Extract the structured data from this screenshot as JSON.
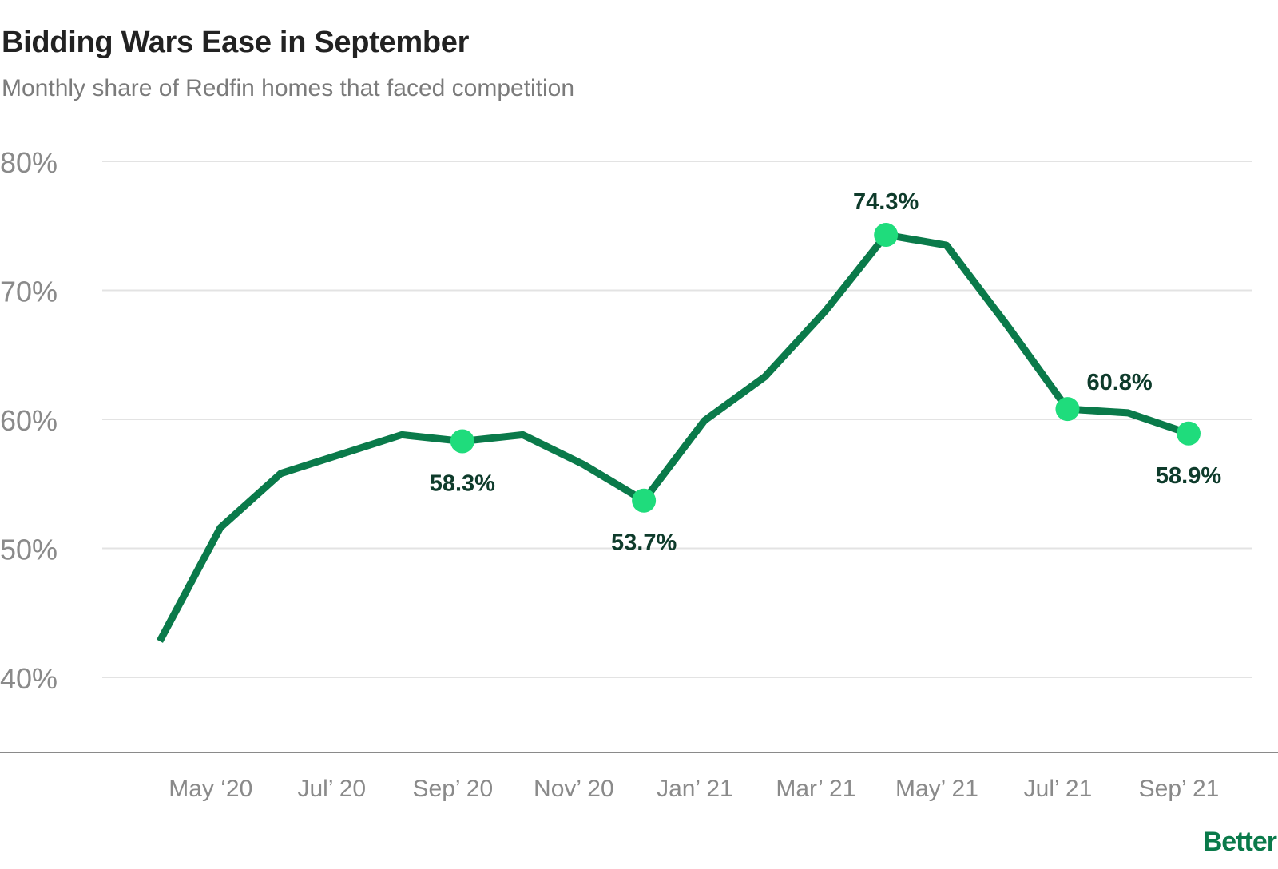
{
  "title": "Bidding Wars Ease in September",
  "subtitle": "Monthly share of Redfin homes that faced competition",
  "brand": "Better",
  "colors": {
    "line": "#0a7a4a",
    "marker": "#1fdc7c",
    "label": "#0e3b2b",
    "grid": "#e3e3e3",
    "axis": "#8a8a8a",
    "tick": "#8a8a8a"
  },
  "chart_data": {
    "type": "line",
    "x": [
      "Apr '20",
      "May '20",
      "Jun '20",
      "Jul '20",
      "Aug '20",
      "Sep '20",
      "Oct '20",
      "Nov '20",
      "Dec '20",
      "Jan '21",
      "Feb '21",
      "Mar '21",
      "Apr '21",
      "May '21",
      "Jun '21",
      "Jul '21",
      "Aug '21",
      "Sep '21"
    ],
    "values": [
      42.8,
      51.6,
      55.8,
      57.3,
      58.8,
      58.3,
      58.8,
      56.5,
      53.7,
      59.9,
      63.3,
      68.4,
      74.3,
      73.5,
      67.3,
      60.8,
      60.5,
      58.9
    ],
    "highlighted": [
      {
        "index": 5,
        "label": "58.3%",
        "position": "below"
      },
      {
        "index": 8,
        "label": "53.7%",
        "position": "below"
      },
      {
        "index": 12,
        "label": "74.3%",
        "position": "above"
      },
      {
        "index": 15,
        "label": "60.8%",
        "position": "above-right"
      },
      {
        "index": 17,
        "label": "58.9%",
        "position": "below"
      }
    ],
    "x_tick_labels": [
      {
        "index": 1,
        "label": "May ‘20"
      },
      {
        "index": 3,
        "label": "Jul’ 20"
      },
      {
        "index": 5,
        "label": "Sep’ 20"
      },
      {
        "index": 7,
        "label": "Nov’ 20"
      },
      {
        "index": 9,
        "label": "Jan’ 21"
      },
      {
        "index": 11,
        "label": "Mar’ 21"
      },
      {
        "index": 13,
        "label": "May’ 21"
      },
      {
        "index": 15,
        "label": "Jul’ 21"
      },
      {
        "index": 17,
        "label": "Sep’ 21"
      }
    ],
    "y_ticks": [
      {
        "value": 40,
        "label": "40%"
      },
      {
        "value": 50,
        "label": "50%"
      },
      {
        "value": 60,
        "label": "60%"
      },
      {
        "value": 70,
        "label": "70%"
      },
      {
        "value": 80,
        "label": "80%"
      }
    ],
    "ylim": [
      34,
      80
    ],
    "grid": true,
    "legend": "none"
  }
}
